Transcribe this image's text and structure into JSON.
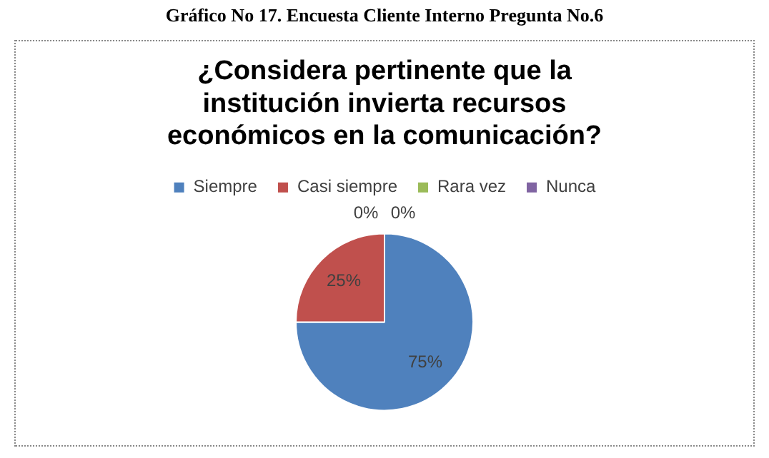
{
  "chart_data": {
    "type": "pie",
    "title": "¿Considera pertinente que la institución invierta recursos económicos en la comunicación?",
    "annotations": [
      "Gráfico No 17.  Encuesta Cliente Interno Pregunta No.6"
    ],
    "categories": [
      "Siempre",
      "Casi siempre",
      "Rara vez",
      "Nunca"
    ],
    "values": [
      75,
      25,
      0,
      0
    ],
    "colors": [
      "#4f81bd",
      "#c0504d",
      "#9bbb59",
      "#8064a2"
    ],
    "value_labels": [
      "75%",
      "25%",
      "0%",
      "0%"
    ],
    "legend": "top"
  }
}
